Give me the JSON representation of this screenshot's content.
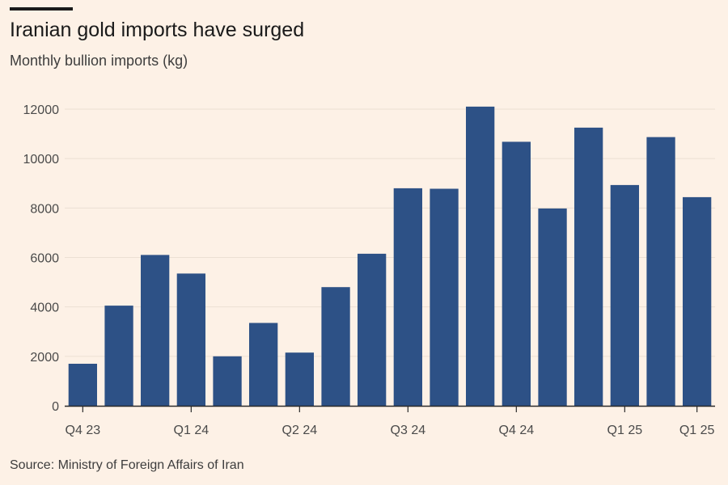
{
  "title": "Iranian gold imports have surged",
  "subtitle": "Monthly bullion imports (kg)",
  "source": "Source: Ministry of Foreign Affairs of Iran",
  "colors": {
    "background": "#fdf1e6",
    "bar": "#2d5186",
    "grid": "#ece0d3",
    "axis": "#2b2b2b"
  },
  "chart_data": {
    "type": "bar",
    "title": "Iranian gold imports have surged",
    "ylabel": "",
    "xlabel": "",
    "ylim": [
      0,
      12000
    ],
    "yticks": [
      0,
      2000,
      4000,
      6000,
      8000,
      10000,
      12000
    ],
    "grid": true,
    "series": [
      {
        "values": [
          1700,
          4050,
          6100,
          5350,
          2000,
          3350,
          2150,
          4800,
          6150,
          8800,
          8780,
          12100,
          10680,
          7980,
          11250,
          8930,
          10870,
          8440
        ]
      }
    ],
    "xtick_labels": [
      {
        "index": 0,
        "label": "Q4 23"
      },
      {
        "index": 3,
        "label": "Q1 24"
      },
      {
        "index": 6,
        "label": "Q2 24"
      },
      {
        "index": 9,
        "label": "Q3 24"
      },
      {
        "index": 12,
        "label": "Q4 24"
      },
      {
        "index": 15,
        "label": "Q1 25"
      },
      {
        "index": 17,
        "label": "Q1 25"
      }
    ]
  }
}
